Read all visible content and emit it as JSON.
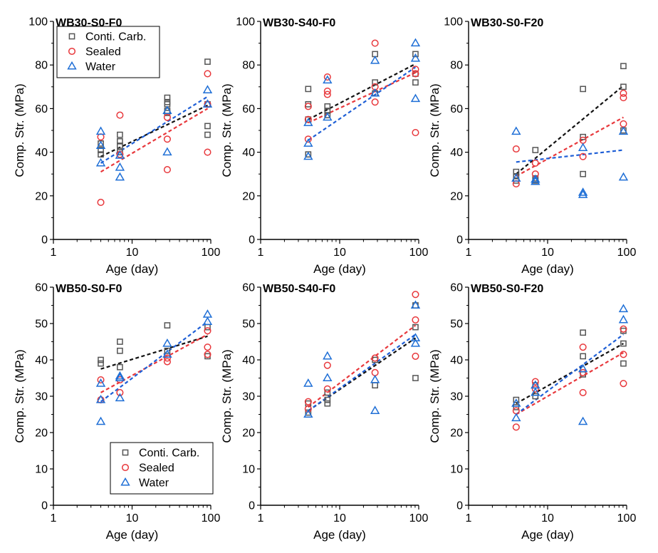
{
  "legend_series": [
    {
      "name": "Conti. Carb.",
      "color": "#555555",
      "marker": "square"
    },
    {
      "name": "Sealed",
      "color": "#e8383c",
      "marker": "circle"
    },
    {
      "name": "Water",
      "color": "#1f6fd6",
      "marker": "triangle"
    }
  ],
  "fit_colors": [
    "#111111",
    "#e8383c",
    "#1f5fd6"
  ],
  "chart_data": [
    {
      "type": "scatter",
      "title": "WB30-S0-F0",
      "xlabel": "Age (day)",
      "ylabel": "Comp. Str. (MPa)",
      "xscale": "log",
      "xlim": [
        1,
        100
      ],
      "ylim": [
        0,
        100
      ],
      "xticks": [
        1,
        10,
        100
      ],
      "xtick_labels": [
        "1",
        "10",
        "100"
      ],
      "yticks": [
        0,
        20,
        40,
        60,
        80,
        100
      ],
      "ytick_labels": [
        "0",
        "20",
        "40",
        "60",
        "80",
        "100"
      ],
      "legend": "top-left",
      "grid": false,
      "series": [
        {
          "name": "Conti. Carb.",
          "x": [
            4,
            4,
            4,
            7,
            7,
            7,
            7,
            28,
            28,
            28,
            28,
            28,
            91,
            91,
            91,
            91
          ],
          "y": [
            39,
            41,
            44,
            43,
            45,
            48,
            40,
            59,
            62,
            63,
            65,
            58,
            48,
            52,
            62,
            81.5
          ]
        },
        {
          "name": "Sealed",
          "x": [
            4,
            4,
            7,
            7,
            28,
            28,
            28,
            91,
            91,
            91
          ],
          "y": [
            17,
            47,
            57,
            39,
            32,
            46,
            56,
            40,
            62,
            76
          ]
        },
        {
          "name": "Water",
          "x": [
            4,
            4,
            4,
            7,
            7,
            7,
            28,
            28,
            91,
            91
          ],
          "y": [
            35,
            43,
            49.5,
            28.5,
            33,
            38.5,
            40,
            59,
            62,
            68.5
          ]
        }
      ],
      "fits": [
        {
          "name": "Conti. Carb.",
          "x": [
            4,
            91
          ],
          "y": [
            38,
            61.5
          ]
        },
        {
          "name": "Sealed",
          "x": [
            4,
            91
          ],
          "y": [
            31,
            60
          ]
        },
        {
          "name": "Water",
          "x": [
            4,
            91
          ],
          "y": [
            35,
            65.5
          ]
        }
      ]
    },
    {
      "type": "scatter",
      "title": "WB30-S40-F0",
      "xlabel": "Age (day)",
      "ylabel": "Comp. Str. (MPa)",
      "xscale": "log",
      "xlim": [
        1,
        100
      ],
      "ylim": [
        0,
        100
      ],
      "xticks": [
        1,
        10,
        100
      ],
      "xtick_labels": [
        "1",
        "10",
        "100"
      ],
      "yticks": [
        0,
        20,
        40,
        60,
        80,
        100
      ],
      "ytick_labels": [
        "0",
        "20",
        "40",
        "60",
        "80",
        "100"
      ],
      "grid": false,
      "series": [
        {
          "name": "Conti. Carb.",
          "x": [
            4,
            4,
            4,
            4,
            7,
            7,
            7,
            28,
            28,
            28,
            91,
            91,
            91
          ],
          "y": [
            39,
            55,
            62,
            69,
            57,
            59,
            61,
            67,
            72,
            85,
            72,
            76,
            85
          ]
        },
        {
          "name": "Sealed",
          "x": [
            4,
            4,
            4,
            7,
            7,
            7,
            28,
            28,
            28,
            91,
            91,
            91
          ],
          "y": [
            46,
            55,
            61,
            66.5,
            68,
            74.5,
            63,
            70,
            90,
            49,
            76,
            78
          ]
        },
        {
          "name": "Water",
          "x": [
            4,
            4,
            4,
            7,
            7,
            28,
            28,
            91,
            91,
            91
          ],
          "y": [
            38,
            44,
            53.5,
            56,
            73,
            67,
            82,
            64.5,
            83,
            90
          ]
        }
      ],
      "fits": [
        {
          "name": "Conti. Carb.",
          "x": [
            4,
            91
          ],
          "y": [
            55,
            80.5
          ]
        },
        {
          "name": "Sealed",
          "x": [
            4,
            91
          ],
          "y": [
            53.5,
            76.5
          ]
        },
        {
          "name": "Water",
          "x": [
            4,
            91
          ],
          "y": [
            45.5,
            79
          ]
        }
      ]
    },
    {
      "type": "scatter",
      "title": "WB30-S0-F20",
      "xlabel": "Age (day)",
      "ylabel": "Comp. Str. (MPa)",
      "xscale": "log",
      "xlim": [
        1,
        100
      ],
      "ylim": [
        0,
        100
      ],
      "xticks": [
        1,
        10,
        100
      ],
      "xtick_labels": [
        "1",
        "10",
        "100"
      ],
      "yticks": [
        0,
        20,
        40,
        60,
        80,
        100
      ],
      "ytick_labels": [
        "0",
        "20",
        "40",
        "60",
        "80",
        "100"
      ],
      "grid": false,
      "series": [
        {
          "name": "Conti. Carb.",
          "x": [
            4,
            4,
            4,
            7,
            7,
            7,
            28,
            28,
            28,
            91,
            91,
            91
          ],
          "y": [
            27,
            29,
            31,
            27,
            28,
            41,
            30,
            47,
            69,
            50,
            70,
            79.5
          ]
        },
        {
          "name": "Sealed",
          "x": [
            4,
            4,
            7,
            7,
            28,
            28,
            91,
            91,
            91
          ],
          "y": [
            25.5,
            41.5,
            30,
            35,
            38,
            45.5,
            53,
            65,
            67
          ]
        },
        {
          "name": "Water",
          "x": [
            4,
            4,
            7,
            7,
            28,
            28,
            28,
            91,
            91
          ],
          "y": [
            28,
            49.5,
            26.5,
            27.5,
            20.5,
            21.5,
            42,
            28.5,
            49.5
          ]
        }
      ],
      "fits": [
        {
          "name": "Conti. Carb.",
          "x": [
            4,
            91
          ],
          "y": [
            30,
            70.5
          ]
        },
        {
          "name": "Sealed",
          "x": [
            4,
            91
          ],
          "y": [
            29,
            56
          ]
        },
        {
          "name": "Water",
          "x": [
            4,
            91
          ],
          "y": [
            35.5,
            41
          ]
        }
      ]
    },
    {
      "type": "scatter",
      "title": "WB50-S0-F0",
      "xlabel": "Age (day)",
      "ylabel": "Comp. Str. (MPa)",
      "xscale": "log",
      "xlim": [
        1,
        100
      ],
      "ylim": [
        0,
        60
      ],
      "xticks": [
        1,
        10,
        100
      ],
      "xtick_labels": [
        "1",
        "10",
        "100"
      ],
      "yticks": [
        0,
        10,
        20,
        30,
        40,
        50,
        60
      ],
      "ytick_labels": [
        "0",
        "10",
        "20",
        "30",
        "40",
        "50",
        "60"
      ],
      "legend": "bottom-center",
      "grid": false,
      "series": [
        {
          "name": "Conti. Carb.",
          "x": [
            4,
            4,
            7,
            7,
            7,
            28,
            28,
            91,
            91
          ],
          "y": [
            39,
            40,
            38,
            42.5,
            45,
            42.5,
            49.5,
            41,
            49
          ]
        },
        {
          "name": "Sealed",
          "x": [
            4,
            4,
            7,
            7,
            28,
            28,
            91,
            91,
            91
          ],
          "y": [
            29,
            34.5,
            31,
            34.5,
            39.5,
            40.5,
            41.5,
            43.5,
            48
          ]
        },
        {
          "name": "Water",
          "x": [
            4,
            4,
            4,
            7,
            7,
            7,
            28,
            28,
            91,
            91
          ],
          "y": [
            23,
            29,
            33.5,
            29.5,
            35,
            35.5,
            41.5,
            44.5,
            50.5,
            52.5
          ]
        }
      ],
      "fits": [
        {
          "name": "Conti. Carb.",
          "x": [
            4,
            91
          ],
          "y": [
            37.5,
            46.5
          ]
        },
        {
          "name": "Sealed",
          "x": [
            4,
            91
          ],
          "y": [
            31,
            47
          ]
        },
        {
          "name": "Water",
          "x": [
            4,
            91
          ],
          "y": [
            28.5,
            50.5
          ]
        }
      ]
    },
    {
      "type": "scatter",
      "title": "WB50-S40-F0",
      "xlabel": "Age (day)",
      "ylabel": "Comp. Str. (MPa)",
      "xscale": "log",
      "xlim": [
        1,
        100
      ],
      "ylim": [
        0,
        60
      ],
      "xticks": [
        1,
        10,
        100
      ],
      "xtick_labels": [
        "1",
        "10",
        "100"
      ],
      "yticks": [
        0,
        10,
        20,
        30,
        40,
        50,
        60
      ],
      "ytick_labels": [
        "0",
        "10",
        "20",
        "30",
        "40",
        "50",
        "60"
      ],
      "grid": false,
      "series": [
        {
          "name": "Conti. Carb.",
          "x": [
            4,
            4,
            7,
            7,
            7,
            28,
            28,
            91,
            91,
            91
          ],
          "y": [
            25.5,
            28,
            28,
            29,
            31,
            33,
            40,
            35,
            49,
            55
          ]
        },
        {
          "name": "Sealed",
          "x": [
            4,
            4,
            7,
            7,
            28,
            28,
            91,
            91,
            91
          ],
          "y": [
            26.5,
            28.5,
            32,
            38.5,
            36.5,
            40.5,
            41,
            51,
            58
          ]
        },
        {
          "name": "Water",
          "x": [
            4,
            4,
            7,
            7,
            28,
            28,
            91,
            91,
            91
          ],
          "y": [
            25,
            33.5,
            35,
            41,
            26,
            34.5,
            44.5,
            46,
            55
          ]
        }
      ],
      "fits": [
        {
          "name": "Conti. Carb.",
          "x": [
            4,
            91
          ],
          "y": [
            26,
            46
          ]
        },
        {
          "name": "Sealed",
          "x": [
            4,
            91
          ],
          "y": [
            27,
            49.5
          ]
        },
        {
          "name": "Water",
          "x": [
            4,
            91
          ],
          "y": [
            26,
            47
          ]
        }
      ]
    },
    {
      "type": "scatter",
      "title": "WB50-S0-F20",
      "xlabel": "Age (day)",
      "ylabel": "Comp. Str. (MPa)",
      "xscale": "log",
      "xlim": [
        1,
        100
      ],
      "ylim": [
        0,
        60
      ],
      "xticks": [
        1,
        10,
        100
      ],
      "xtick_labels": [
        "1",
        "10",
        "100"
      ],
      "yticks": [
        0,
        10,
        20,
        30,
        40,
        50,
        60
      ],
      "ytick_labels": [
        "0",
        "10",
        "20",
        "30",
        "40",
        "50",
        "60"
      ],
      "grid": false,
      "series": [
        {
          "name": "Conti. Carb.",
          "x": [
            4,
            4,
            7,
            7,
            28,
            28,
            28,
            91,
            91,
            91
          ],
          "y": [
            27,
            29,
            30,
            33,
            36,
            41,
            47.5,
            39,
            44.5,
            48
          ]
        },
        {
          "name": "Sealed",
          "x": [
            4,
            4,
            7,
            7,
            28,
            28,
            28,
            91,
            91,
            91
          ],
          "y": [
            21.5,
            26,
            32,
            34,
            31,
            36.5,
            43.5,
            33.5,
            41.5,
            48.5
          ]
        },
        {
          "name": "Water",
          "x": [
            4,
            4,
            7,
            7,
            28,
            28,
            91,
            91
          ],
          "y": [
            24,
            28,
            31,
            33,
            23,
            37.5,
            51,
            54
          ]
        }
      ],
      "fits": [
        {
          "name": "Conti. Carb.",
          "x": [
            4,
            91
          ],
          "y": [
            28,
            44.5
          ]
        },
        {
          "name": "Sealed",
          "x": [
            4,
            91
          ],
          "y": [
            25,
            42
          ]
        },
        {
          "name": "Water",
          "x": [
            4,
            91
          ],
          "y": [
            25,
            47
          ]
        }
      ]
    }
  ]
}
